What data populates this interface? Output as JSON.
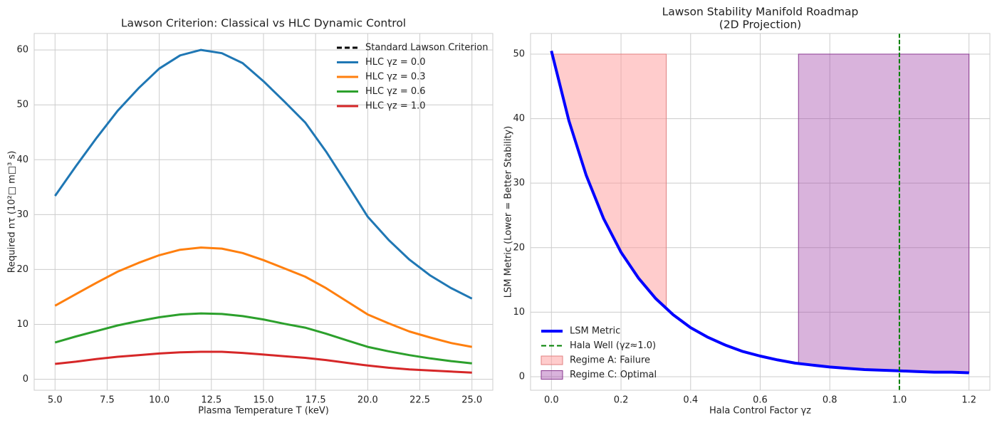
{
  "chart_data": [
    {
      "type": "line",
      "title": "Lawson Criterion: Classical vs HLC Dynamic Control",
      "x_label": "Plasma Temperature T (keV)",
      "y_label": "Required nτ (10²□ m□³ s)",
      "x": [
        5,
        6,
        7,
        8,
        9,
        10,
        11,
        12,
        13,
        14,
        15,
        16,
        17,
        18,
        19,
        20,
        21,
        22,
        23,
        24,
        25
      ],
      "series": [
        {
          "name": "Standard Lawson Criterion",
          "color": "#000000",
          "dash": true,
          "values": [
            null,
            null,
            null,
            null,
            null,
            null,
            null,
            null,
            null,
            null,
            null,
            null,
            null,
            null,
            null,
            null,
            null,
            null,
            null,
            null,
            null
          ]
        },
        {
          "name": "HLC γz = 0.0",
          "color": "#1f77b4",
          "values": [
            33.4,
            38.8,
            44.0,
            48.9,
            53.0,
            56.6,
            59.0,
            60.0,
            59.4,
            57.6,
            54.3,
            50.6,
            46.8,
            41.5,
            35.6,
            29.6,
            25.4,
            21.8,
            18.9,
            16.6,
            14.7
          ]
        },
        {
          "name": "HLC γz = 0.3",
          "color": "#ff7f0e",
          "values": [
            13.4,
            15.5,
            17.6,
            19.6,
            21.2,
            22.6,
            23.6,
            24.0,
            23.8,
            23.0,
            21.7,
            20.2,
            18.7,
            16.6,
            14.2,
            11.8,
            10.2,
            8.7,
            7.6,
            6.6,
            5.9
          ]
        },
        {
          "name": "HLC γz = 0.6",
          "color": "#2ca02c",
          "values": [
            6.7,
            7.8,
            8.8,
            9.8,
            10.6,
            11.3,
            11.8,
            12.0,
            11.9,
            11.5,
            10.9,
            10.1,
            9.4,
            8.3,
            7.1,
            5.9,
            5.1,
            4.4,
            3.8,
            3.3,
            2.9
          ]
        },
        {
          "name": "HLC γz = 1.0",
          "color": "#d62728",
          "values": [
            2.8,
            3.2,
            3.7,
            4.1,
            4.4,
            4.7,
            4.9,
            5.0,
            5.0,
            4.8,
            4.5,
            4.2,
            3.9,
            3.5,
            3.0,
            2.5,
            2.1,
            1.8,
            1.6,
            1.4,
            1.2
          ]
        }
      ],
      "xlim": [
        4,
        26
      ],
      "ylim": [
        -2,
        63
      ],
      "xticks": [
        {
          "value": 5,
          "label": "5.0"
        },
        7.5,
        {
          "value": 10,
          "label": "10.0"
        },
        12.5,
        {
          "value": 15,
          "label": "15.0"
        },
        17.5,
        {
          "value": 20,
          "label": "20.0"
        },
        22.5,
        {
          "value": 25,
          "label": "25.0"
        }
      ],
      "yticks": [
        0,
        10,
        20,
        30,
        40,
        50,
        60
      ],
      "grid": true,
      "legend": "upper right",
      "line_width": 3
    },
    {
      "type": "line",
      "title": [
        "Lawson Stability Manifold Roadmap",
        "(2D Projection)"
      ],
      "x_label": "Hala Control Factor γz",
      "y_label": "LSM Metric (Lower = Better Stability)",
      "x": [
        0,
        0.05,
        0.1,
        0.15,
        0.2,
        0.25,
        0.3,
        0.35,
        0.4,
        0.45,
        0.5,
        0.55,
        0.6,
        0.65,
        0.7,
        0.75,
        0.8,
        0.85,
        0.9,
        0.95,
        1.0,
        1.05,
        1.1,
        1.15,
        1.2
      ],
      "series": [
        {
          "name": "LSM Metric",
          "color": "#0000ff",
          "values": [
            50.5,
            39.7,
            31.2,
            24.5,
            19.3,
            15.3,
            12.1,
            9.6,
            7.6,
            6.1,
            4.9,
            3.9,
            3.2,
            2.6,
            2.1,
            1.8,
            1.5,
            1.3,
            1.1,
            1.0,
            0.9,
            0.8,
            0.7,
            0.7,
            0.6
          ]
        }
      ],
      "vlines": [
        {
          "name": "Hala Well (γz≈1.0)",
          "x": 1.0,
          "color": "#008000"
        }
      ],
      "regions": [
        {
          "name": "Regime A: Failure",
          "color": "#ff9999",
          "edge": "#e08080",
          "opacity": 0.5,
          "x": [
            0,
            0.33
          ],
          "top": 50
        },
        {
          "name": "Regime C: Optimal",
          "color": "#a040a8",
          "edge": "#8a3a90",
          "opacity": 0.4,
          "x": [
            0.71,
            1.2
          ],
          "top": 50
        }
      ],
      "xlim": [
        -0.06,
        1.26
      ],
      "ylim": [
        -2.1,
        53.2
      ],
      "xticks": [
        {
          "value": 0,
          "label": "0.0"
        },
        0.2,
        0.4,
        0.6,
        0.8,
        {
          "value": 1,
          "label": "1.0"
        },
        1.2
      ],
      "yticks": [
        0,
        10,
        20,
        30,
        40,
        50
      ],
      "grid": true,
      "legend": "lower left",
      "line_width": 4
    }
  ]
}
